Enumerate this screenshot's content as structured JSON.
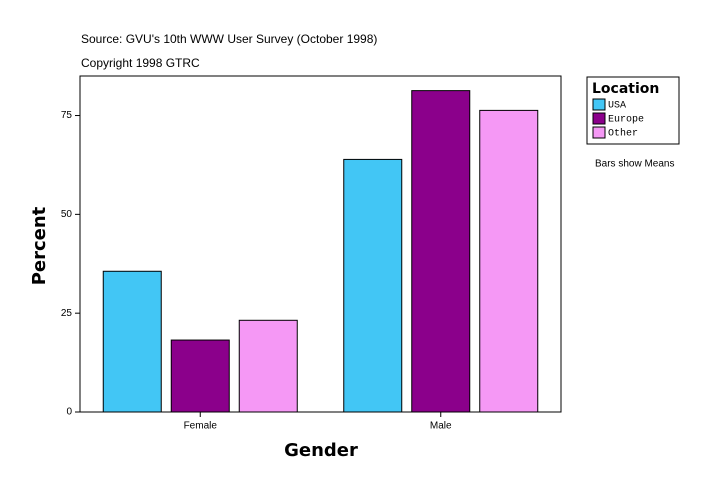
{
  "chart_data": {
    "type": "bar",
    "source": "Source: GVU's 10th WWW User Survey (October 1998)",
    "copyright": "Copyright 1998 GTRC",
    "note": "Bars show Means",
    "xlabel": "Gender",
    "ylabel": "Percent",
    "legend_title": "Location",
    "categories": [
      "Female",
      "Male"
    ],
    "series": [
      {
        "name": "USA",
        "color": "#42c6f5",
        "values": [
          35.6,
          63.9
        ]
      },
      {
        "name": "Europe",
        "color": "#8b008b",
        "values": [
          18.2,
          81.3
        ]
      },
      {
        "name": "Other",
        "color": "#f598f5",
        "values": [
          23.2,
          76.3
        ]
      }
    ],
    "ylim": [
      0,
      85
    ],
    "yticks": [
      0,
      25,
      50,
      75
    ]
  }
}
